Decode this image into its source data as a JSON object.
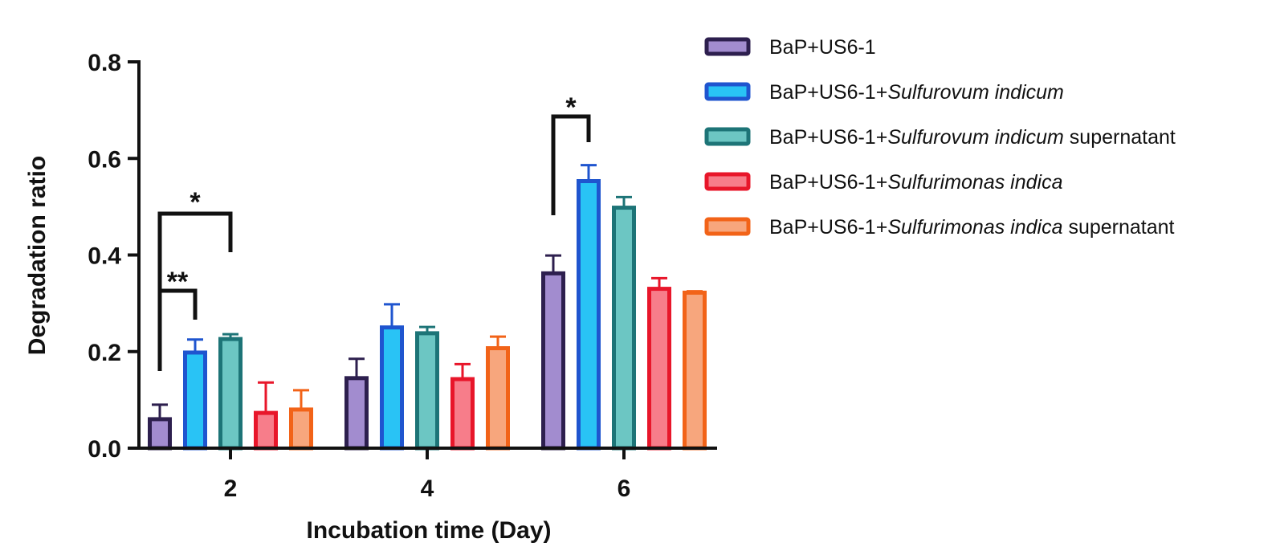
{
  "chart_data": {
    "type": "bar",
    "xlabel": "Incubation time (Day)",
    "ylabel": "Degradation ratio",
    "ylim": [
      0,
      0.8
    ],
    "yticks": [
      "0.0",
      "0.2",
      "0.4",
      "0.6",
      "0.8"
    ],
    "categories": [
      "2",
      "4",
      "6"
    ],
    "legend_position": "top-right",
    "grid": false,
    "series": [
      {
        "name": "BaP+US6-1",
        "name_italic": "",
        "name_suffix": "",
        "values": [
          0.06,
          0.145,
          0.362
        ],
        "errors": [
          0.03,
          0.04,
          0.037
        ],
        "fill": "#a28ccf",
        "stroke": "#2d1f4e"
      },
      {
        "name": "BaP+US6-1+",
        "name_italic": "Sulfurovum indicum",
        "name_suffix": "",
        "values": [
          0.198,
          0.25,
          0.553
        ],
        "errors": [
          0.027,
          0.048,
          0.033
        ],
        "fill": "#29c3f5",
        "stroke": "#1f55cf"
      },
      {
        "name": "BaP+US6-1+",
        "name_italic": "Sulfurovum indicum",
        "name_suffix": " supernatant",
        "values": [
          0.226,
          0.238,
          0.498
        ],
        "errors": [
          0.01,
          0.013,
          0.022
        ],
        "fill": "#6cc6c3",
        "stroke": "#1d7477"
      },
      {
        "name": "BaP+US6-1+",
        "name_italic": "Sulfurimonas indica",
        "name_suffix": "",
        "values": [
          0.073,
          0.143,
          0.33
        ],
        "errors": [
          0.063,
          0.031,
          0.022
        ],
        "fill": "#f77d8a",
        "stroke": "#e8162a"
      },
      {
        "name": "BaP+US6-1+",
        "name_italic": "Sulfurimonas indica",
        "name_suffix": " supernatant",
        "values": [
          0.08,
          0.207,
          0.322
        ],
        "errors": [
          0.04,
          0.024,
          0.003
        ],
        "fill": "#f7a67d",
        "stroke": "#f26318"
      }
    ],
    "annotations": [
      {
        "label": "**",
        "category": "2",
        "from_series": 0,
        "to_series": 1
      },
      {
        "label": "*",
        "category": "2",
        "from_series": 0,
        "to_series": 2
      },
      {
        "label": "*",
        "category": "6",
        "from_series": 0,
        "to_series": 1
      }
    ]
  }
}
